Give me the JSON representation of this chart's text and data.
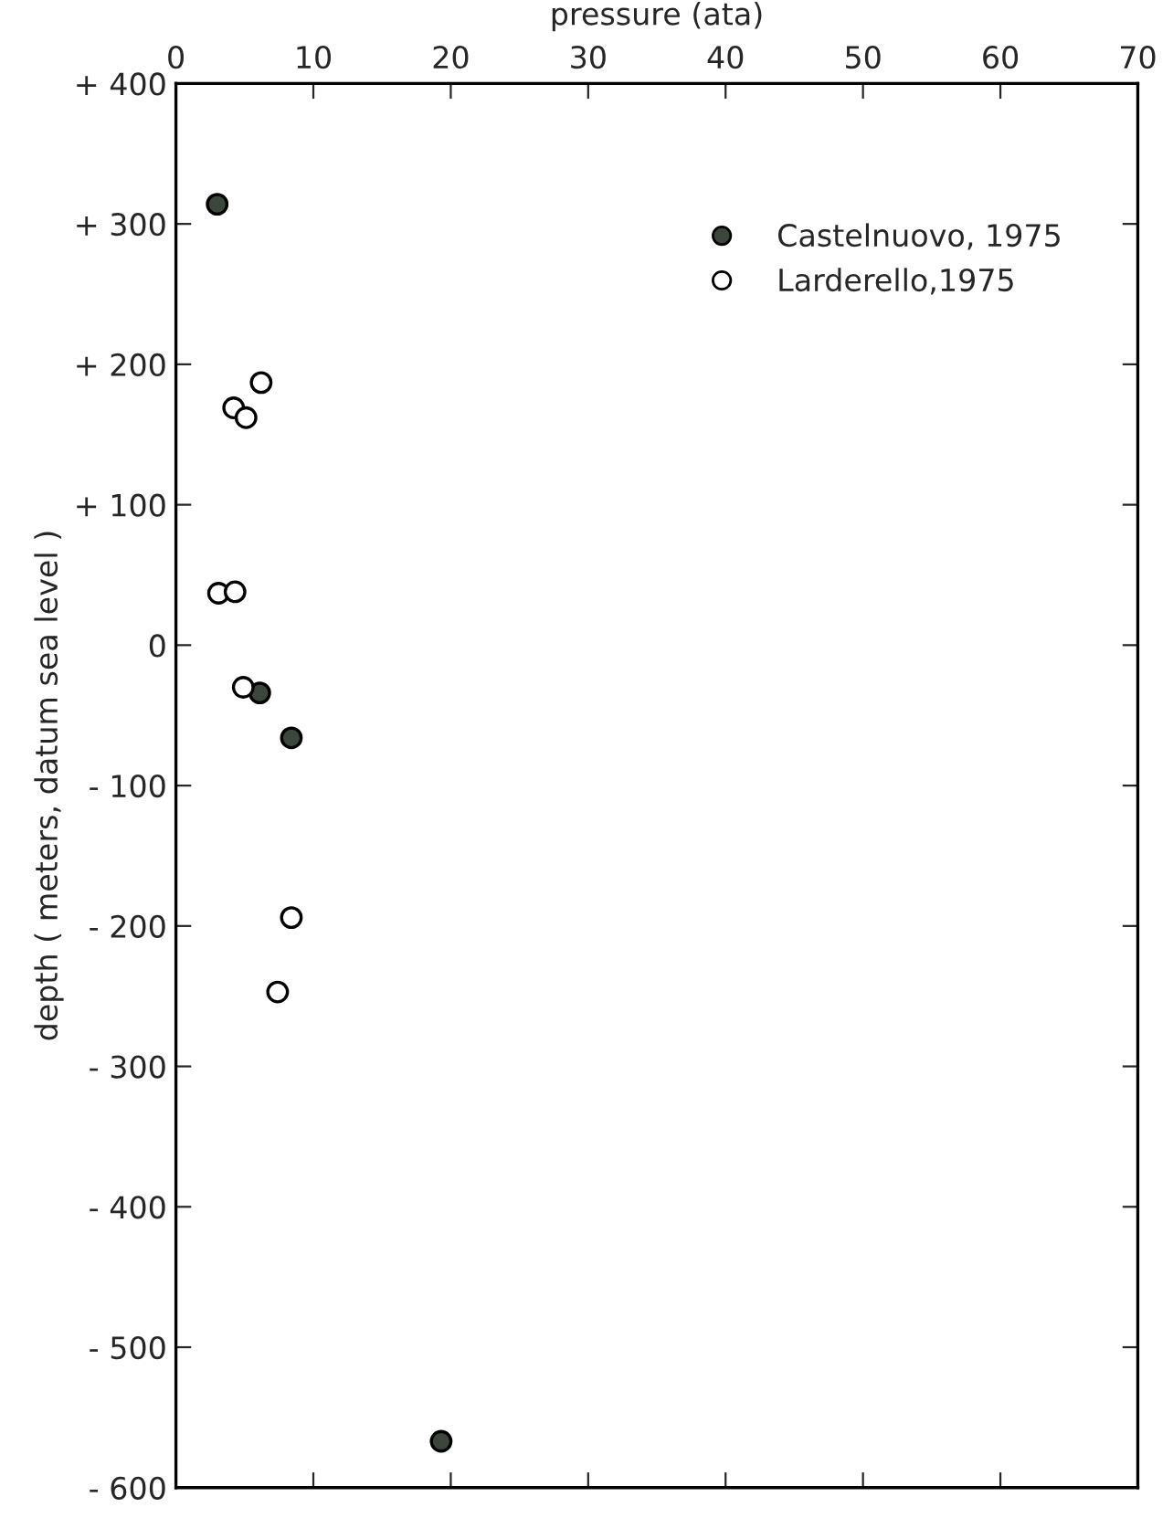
{
  "chart_data": {
    "type": "scatter",
    "xlabel": "pressure (ata)",
    "ylabel": "depth ( meters, datum sea level )",
    "xlim": [
      0,
      70
    ],
    "xticks": [
      0,
      10,
      20,
      30,
      40,
      50,
      60,
      70
    ],
    "ylim": [
      -600,
      400
    ],
    "yticks": [
      {
        "value": 400,
        "label": "+ 400"
      },
      {
        "value": 300,
        "label": "+ 300"
      },
      {
        "value": 200,
        "label": "+ 200"
      },
      {
        "value": 100,
        "label": "+ 100"
      },
      0,
      {
        "value": -100,
        "label": "- 100"
      },
      {
        "value": -200,
        "label": "- 200"
      },
      {
        "value": -300,
        "label": "- 300"
      },
      {
        "value": -400,
        "label": "- 400"
      },
      {
        "value": -500,
        "label": "- 500"
      },
      {
        "value": -600,
        "label": "- 600"
      }
    ],
    "grid": false,
    "legend": "top right",
    "marker": "circle",
    "series": [
      {
        "name": "Castelnuovo, 1975",
        "color": "#3c463c",
        "x": [
          3.0,
          6.1,
          8.4,
          19.3
        ],
        "values": [
          314,
          -34,
          -66,
          -567
        ]
      },
      {
        "name": "Larderello,1975",
        "color": "#ffffff",
        "x": [
          6.2,
          4.2,
          5.1,
          3.1,
          4.3,
          4.9,
          8.4,
          7.4
        ],
        "values": [
          187,
          169,
          162,
          37,
          38,
          -30,
          -194,
          -247
        ]
      }
    ]
  }
}
